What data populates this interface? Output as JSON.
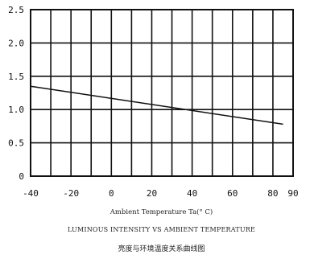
{
  "chart_data": {
    "type": "line",
    "xlabel": "Ambient Temperature Ta(° C)",
    "title": "LUMINOUS INTENSITY VS AMBIENT TEMPERATURE",
    "subtitle": "亮度与环境温度关系曲线图",
    "xlim": [
      -40,
      90
    ],
    "ylim": [
      0,
      2.5
    ],
    "x_ticks": [
      "-40",
      "-20",
      "0",
      "20",
      "40",
      "60",
      "80",
      "90"
    ],
    "y_ticks": [
      "0",
      "0.5",
      "1.0",
      "1.5",
      "2.0",
      "2.5"
    ],
    "grid": true,
    "series": [
      {
        "x": [
          -40,
          85
        ],
        "y": [
          1.35,
          0.78
        ]
      }
    ]
  }
}
